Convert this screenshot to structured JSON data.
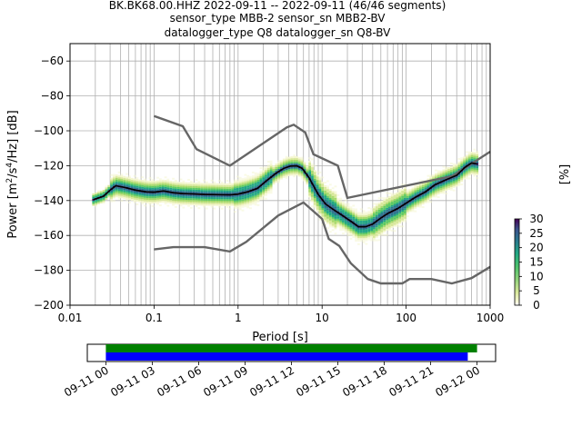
{
  "header": {
    "line1": "BK.BK68.00.HHZ   2022-09-11 -- 2022-09-11  (46/46 segments)",
    "line2": "sensor_type MBB-2 sensor_sn MBB2-BV",
    "line3": "datalogger_type Q8 datalogger_sn Q8-BV"
  },
  "chart_data": {
    "type": "heatmap",
    "title": "BK.BK68.00.HHZ   2022-09-11 -- 2022-09-11  (46/46 segments)",
    "xlabel": "Period [s]",
    "ylabel": "Power [m2/s4/Hz] [dB]",
    "x_scale": "log",
    "xlim": [
      0.01,
      1000
    ],
    "ylim": [
      -200,
      -50
    ],
    "x_ticks": [
      {
        "value": 0.01,
        "label": "0.01"
      },
      {
        "value": 0.1,
        "label": "0.1"
      },
      {
        "value": 1,
        "label": "1"
      },
      {
        "value": 10,
        "label": "10"
      },
      {
        "value": 100,
        "label": "100"
      },
      {
        "value": 1000,
        "label": "1000"
      }
    ],
    "y_ticks": [
      {
        "value": -60,
        "label": "−60"
      },
      {
        "value": -80,
        "label": "−80"
      },
      {
        "value": -100,
        "label": "−100"
      },
      {
        "value": -120,
        "label": "−120"
      },
      {
        "value": -140,
        "label": "−140"
      },
      {
        "value": -160,
        "label": "−160"
      },
      {
        "value": -180,
        "label": "−180"
      },
      {
        "value": -200,
        "label": "−200"
      }
    ],
    "grid": true,
    "colorbar": {
      "label": "[%]",
      "min": 0,
      "max": 30,
      "ticks": [
        {
          "value": 0,
          "label": "0"
        },
        {
          "value": 5,
          "label": "5"
        },
        {
          "value": 10,
          "label": "10"
        },
        {
          "value": 15,
          "label": "15"
        },
        {
          "value": 20,
          "label": "20"
        },
        {
          "value": 25,
          "label": "25"
        },
        {
          "value": 30,
          "label": "30"
        }
      ]
    },
    "mean_curve": [
      [
        0.019,
        -139.5
      ],
      [
        0.025,
        -137.5
      ],
      [
        0.03,
        -134
      ],
      [
        0.035,
        -131.5
      ],
      [
        0.045,
        -132.5
      ],
      [
        0.06,
        -134
      ],
      [
        0.08,
        -135
      ],
      [
        0.1,
        -135.2
      ],
      [
        0.13,
        -134.5
      ],
      [
        0.17,
        -135.5
      ],
      [
        0.22,
        -136
      ],
      [
        0.3,
        -136.2
      ],
      [
        0.4,
        -136.5
      ],
      [
        0.6,
        -136.6
      ],
      [
        0.8,
        -136.7
      ],
      [
        1.0,
        -136.3
      ],
      [
        1.3,
        -135
      ],
      [
        1.7,
        -133
      ],
      [
        2.2,
        -128.5
      ],
      [
        2.8,
        -124.5
      ],
      [
        3.5,
        -121.5
      ],
      [
        4.2,
        -120.2
      ],
      [
        5.0,
        -120.1
      ],
      [
        5.8,
        -121.5
      ],
      [
        7.0,
        -127
      ],
      [
        9.0,
        -136.5
      ],
      [
        11,
        -142
      ],
      [
        14,
        -145.5
      ],
      [
        18,
        -149
      ],
      [
        23,
        -152.5
      ],
      [
        27,
        -155
      ],
      [
        33,
        -155
      ],
      [
        40,
        -153.5
      ],
      [
        50,
        -150
      ],
      [
        60,
        -147.5
      ],
      [
        80,
        -144.5
      ],
      [
        100,
        -141.5
      ],
      [
        130,
        -138
      ],
      [
        170,
        -135
      ],
      [
        220,
        -131
      ],
      [
        300,
        -128
      ],
      [
        400,
        -125.5
      ],
      [
        500,
        -121
      ],
      [
        600,
        -118.5
      ],
      [
        700,
        -119
      ]
    ],
    "nlnm": [
      [
        0.1,
        -168
      ],
      [
        0.17,
        -166.7
      ],
      [
        0.4,
        -166.7
      ],
      [
        0.8,
        -169.2
      ],
      [
        1.25,
        -163.7
      ],
      [
        3.0,
        -148.6
      ],
      [
        6.0,
        -141.1
      ],
      [
        10,
        -150.5
      ],
      [
        12,
        -162
      ],
      [
        16,
        -166
      ],
      [
        22,
        -176
      ],
      [
        35,
        -185
      ],
      [
        50,
        -187.5
      ],
      [
        90,
        -187.5
      ],
      [
        110,
        -185
      ],
      [
        200,
        -185
      ],
      [
        350,
        -187.5
      ],
      [
        600,
        -184.5
      ],
      [
        1000,
        -178
      ]
    ],
    "nhnm": [
      [
        0.1,
        -91.5
      ],
      [
        0.22,
        -97.4
      ],
      [
        0.32,
        -110.5
      ],
      [
        0.8,
        -120
      ],
      [
        3.8,
        -98
      ],
      [
        4.6,
        -96.5
      ],
      [
        6.3,
        -101
      ],
      [
        7.9,
        -113.5
      ],
      [
        15.4,
        -120
      ],
      [
        20,
        -138.5
      ],
      [
        354,
        -126
      ],
      [
        1000,
        -112
      ]
    ],
    "timeline": {
      "x_ticks": [
        {
          "value": 0,
          "label": "09-11 00"
        },
        {
          "value": 3,
          "label": "09-11 03"
        },
        {
          "value": 6,
          "label": "09-11 06"
        },
        {
          "value": 9,
          "label": "09-11 09"
        },
        {
          "value": 12,
          "label": "09-11 12"
        },
        {
          "value": 15,
          "label": "09-11 15"
        },
        {
          "value": 18,
          "label": "09-11 18"
        },
        {
          "value": 21,
          "label": "09-11 21"
        },
        {
          "value": 24,
          "label": "09-12 00"
        }
      ],
      "xlim_hours": [
        -1.2,
        25.2
      ],
      "green_span_hours": [
        0,
        24
      ],
      "blue_span_hours": [
        0,
        23.4
      ],
      "colors": {
        "green": "#008000",
        "blue": "#0000ff"
      }
    }
  }
}
